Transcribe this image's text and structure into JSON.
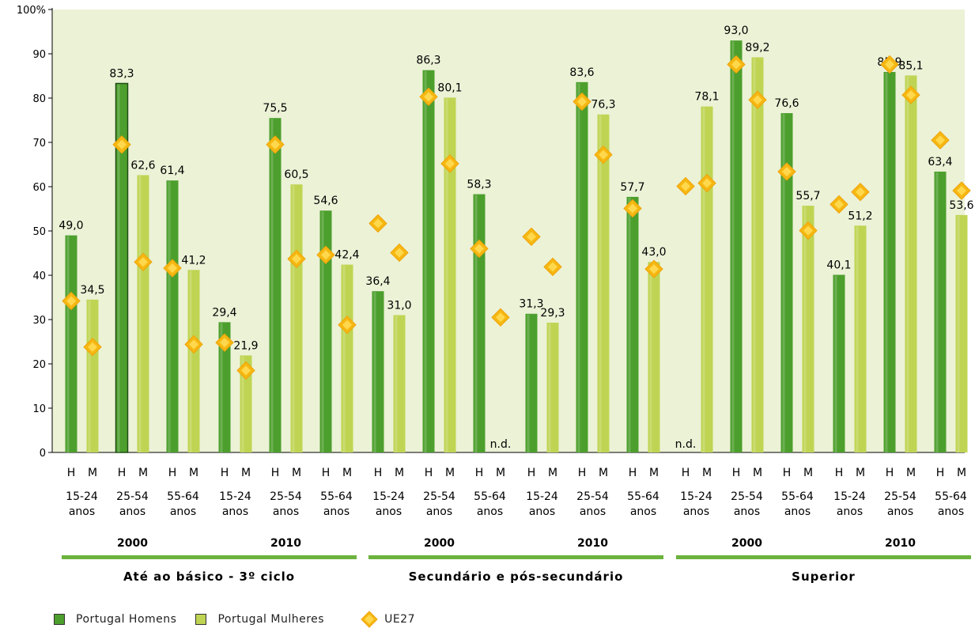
{
  "chart_data": {
    "type": "bar",
    "title": "",
    "ylim": [
      0,
      100
    ],
    "y_ticks": [
      "0",
      "10",
      "20",
      "30",
      "40",
      "50",
      "60",
      "70",
      "80",
      "90",
      "100%"
    ],
    "grid": false,
    "legend_position": "bottom-left",
    "colors": {
      "homens": "#4c9f2c",
      "mulheres": "#bfd452",
      "ue27": "#f6b811",
      "plot_bg": "#ebf2d6",
      "group_line": "#6cb33e"
    },
    "legend": {
      "homens": "Portugal Homens",
      "mulheres": "Portugal Mulheres",
      "ue27": "UE27"
    },
    "na_label": "n.d.",
    "sex_labels": {
      "h": "H",
      "m": "M"
    },
    "groups": [
      {
        "name": "Até ao básico - 3º ciclo",
        "years": [
          {
            "year": "2000",
            "ages": [
              {
                "age": [
                  "15-24",
                  "anos"
                ],
                "h": {
                  "value": 49.0,
                  "label": "49,0",
                  "ue27": 34.2
                },
                "m": {
                  "value": 34.5,
                  "label": "34,5",
                  "ue27": 23.8
                }
              },
              {
                "age": [
                  "25-54",
                  "anos"
                ],
                "h": {
                  "value": 83.3,
                  "label": "83,3",
                  "ue27": 69.5
                },
                "m": {
                  "value": 62.6,
                  "label": "62,6",
                  "ue27": 43.0
                }
              },
              {
                "age": [
                  "55-64",
                  "anos"
                ],
                "h": {
                  "value": 61.4,
                  "label": "61,4",
                  "ue27": 41.6
                },
                "m": {
                  "value": 41.2,
                  "label": "41,2",
                  "ue27": 24.4
                }
              }
            ]
          },
          {
            "year": "2010",
            "ages": [
              {
                "age": [
                  "15-24",
                  "anos"
                ],
                "h": {
                  "value": 29.4,
                  "label": "29,4",
                  "ue27": 24.8
                },
                "m": {
                  "value": 21.9,
                  "label": "21,9",
                  "ue27": 18.5
                }
              },
              {
                "age": [
                  "25-54",
                  "anos"
                ],
                "h": {
                  "value": 75.5,
                  "label": "75,5",
                  "ue27": 69.5
                },
                "m": {
                  "value": 60.5,
                  "label": "60,5",
                  "ue27": 43.7
                }
              },
              {
                "age": [
                  "55-64",
                  "anos"
                ],
                "h": {
                  "value": 54.6,
                  "label": "54,6",
                  "ue27": 44.6
                },
                "m": {
                  "value": 42.4,
                  "label": "42,4",
                  "ue27": 28.8
                }
              }
            ]
          }
        ]
      },
      {
        "name": "Secundário e pós-secundário",
        "years": [
          {
            "year": "2000",
            "ages": [
              {
                "age": [
                  "15-24",
                  "anos"
                ],
                "h": {
                  "value": 36.4,
                  "label": "36,4",
                  "ue27": 51.7
                },
                "m": {
                  "value": 31.0,
                  "label": "31,0",
                  "ue27": 45.1
                }
              },
              {
                "age": [
                  "25-54",
                  "anos"
                ],
                "h": {
                  "value": 86.3,
                  "label": "86,3",
                  "ue27": 80.3
                },
                "m": {
                  "value": 80.1,
                  "label": "80,1",
                  "ue27": 65.2
                }
              },
              {
                "age": [
                  "55-64",
                  "anos"
                ],
                "h": {
                  "value": 58.3,
                  "label": "58,3",
                  "ue27": 46.0
                },
                "m": {
                  "value": null,
                  "label": "",
                  "ue27": 30.5
                }
              }
            ]
          },
          {
            "year": "2010",
            "ages": [
              {
                "age": [
                  "15-24",
                  "anos"
                ],
                "h": {
                  "value": 31.3,
                  "label": "31,3",
                  "ue27": 48.7
                },
                "m": {
                  "value": 29.3,
                  "label": "29,3",
                  "ue27": 41.9
                }
              },
              {
                "age": [
                  "25-54",
                  "anos"
                ],
                "h": {
                  "value": 83.6,
                  "label": "83,6",
                  "ue27": 79.2
                },
                "m": {
                  "value": 76.3,
                  "label": "76,3",
                  "ue27": 67.2
                }
              },
              {
                "age": [
                  "55-64",
                  "anos"
                ],
                "h": {
                  "value": 57.7,
                  "label": "57,7",
                  "ue27": 55.1
                },
                "m": {
                  "value": 43.0,
                  "label": "43,0",
                  "ue27": 41.4
                }
              }
            ]
          }
        ]
      },
      {
        "name": "Superior",
        "years": [
          {
            "year": "2000",
            "ages": [
              {
                "age": [
                  "15-24",
                  "anos"
                ],
                "h": {
                  "value": null,
                  "label": "",
                  "ue27": 60.1
                },
                "m": {
                  "value": 78.1,
                  "label": "78,1",
                  "ue27": 60.8
                }
              },
              {
                "age": [
                  "25-54",
                  "anos"
                ],
                "h": {
                  "value": 93.0,
                  "label": "93,0",
                  "ue27": 87.6
                },
                "m": {
                  "value": 89.2,
                  "label": "89,2",
                  "ue27": 79.6
                }
              },
              {
                "age": [
                  "55-64",
                  "anos"
                ],
                "h": {
                  "value": 76.6,
                  "label": "76,6",
                  "ue27": 63.4
                },
                "m": {
                  "value": 55.7,
                  "label": "55,7",
                  "ue27": 50.1
                }
              }
            ]
          },
          {
            "year": "2010",
            "ages": [
              {
                "age": [
                  "15-24",
                  "anos"
                ],
                "h": {
                  "value": 40.1,
                  "label": "40,1",
                  "ue27": 56.0
                },
                "m": {
                  "value": 51.2,
                  "label": "51,2",
                  "ue27": 58.8
                }
              },
              {
                "age": [
                  "25-54",
                  "anos"
                ],
                "h": {
                  "value": 85.9,
                  "label": "85,9",
                  "ue27": 87.6
                },
                "m": {
                  "value": 85.1,
                  "label": "85,1",
                  "ue27": 80.7
                }
              },
              {
                "age": [
                  "55-64",
                  "anos"
                ],
                "h": {
                  "value": 63.4,
                  "label": "63,4",
                  "ue27": 70.5
                },
                "m": {
                  "value": 53.6,
                  "label": "53,6",
                  "ue27": 59.1
                }
              }
            ]
          }
        ]
      }
    ]
  }
}
